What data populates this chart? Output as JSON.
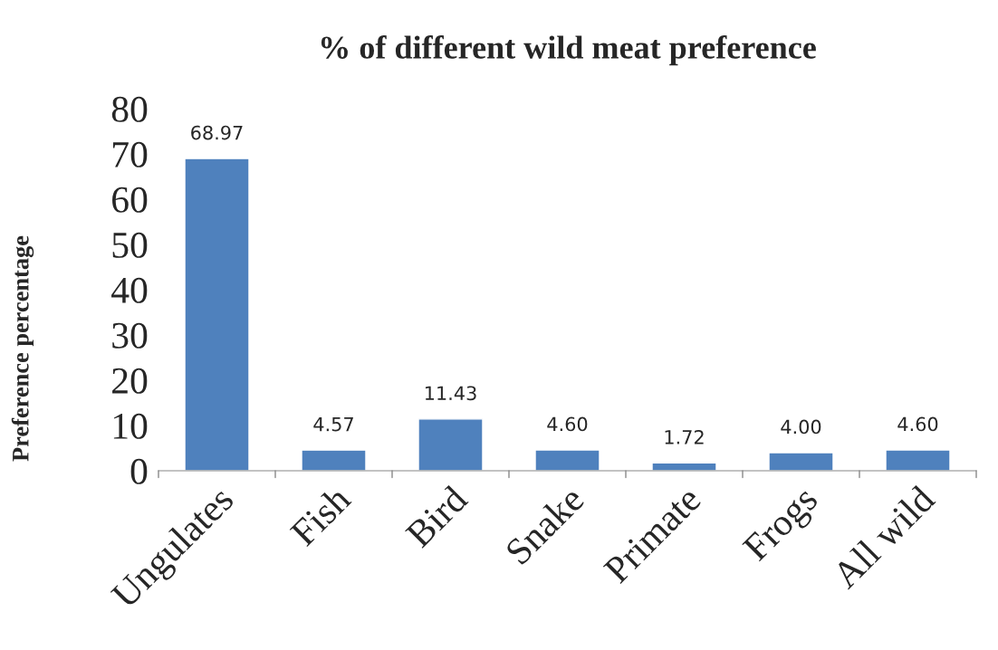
{
  "chart_data": {
    "type": "bar",
    "title": "% of different wild meat preference",
    "ylabel": "Preference percentage",
    "categories": [
      "Ungulates",
      "Fish",
      "Bird",
      "Snake",
      "Primate",
      "Frogs",
      "All wild"
    ],
    "values": [
      68.97,
      4.57,
      11.43,
      4.6,
      1.72,
      4.0,
      4.6
    ],
    "value_labels": [
      "68.97",
      "4.57",
      "11.43",
      "4.60",
      "1.72",
      "4.00",
      "4.60"
    ],
    "color": "#4f81bd",
    "ylim": [
      0,
      80
    ],
    "yticks": [
      0,
      10,
      20,
      30,
      40,
      50,
      60,
      70,
      80
    ],
    "grid": false,
    "legend": false
  }
}
